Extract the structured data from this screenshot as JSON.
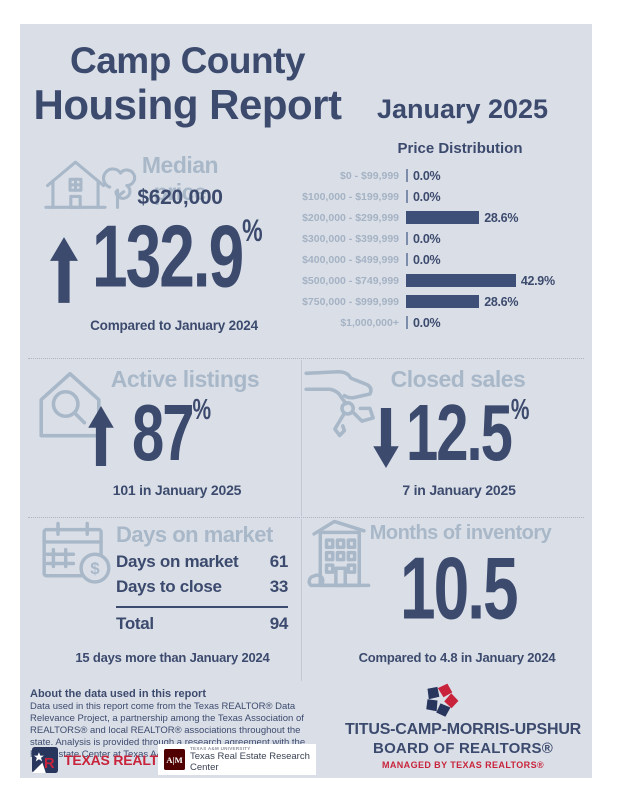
{
  "colors": {
    "navy": "#3c4a6e",
    "bar": "#3e4f78",
    "muted": "#a9b8c9",
    "card_bg": "#dadfe7",
    "red": "#c8233b",
    "maroon": "#500000"
  },
  "header": {
    "title_line1": "Camp County",
    "title_line2": "Housing Report",
    "date": "January 2025"
  },
  "chart_data": {
    "type": "bar",
    "orientation": "horizontal",
    "title": "Price Distribution",
    "categories": [
      "$0 - $99,999",
      "$100,000 - $199,999",
      "$200,000 - $299,999",
      "$300,000 - $399,999",
      "$400,000 - $499,999",
      "$500,000 - $749,999",
      "$750,000 - $999,999",
      "$1,000,000+"
    ],
    "values": [
      0.0,
      0.0,
      28.6,
      0.0,
      0.0,
      42.9,
      28.6,
      0.0
    ],
    "value_labels": [
      "0.0%",
      "0.0%",
      "28.6%",
      "0.0%",
      "0.0%",
      "42.9%",
      "28.6%",
      "0.0%"
    ],
    "xlim": [
      0,
      45
    ],
    "bar_color": "#3e4f78",
    "grid": false,
    "legend": "none"
  },
  "median_price": {
    "label": "Median price",
    "value": "$620,000",
    "direction": "up",
    "change": "132.9",
    "unit": "%",
    "note": "Compared to January 2024"
  },
  "active_listings": {
    "label": "Active listings",
    "direction": "up",
    "change": "87",
    "unit": "%",
    "note": "101 in January 2025"
  },
  "closed_sales": {
    "label": "Closed sales",
    "direction": "down",
    "change": "12.5",
    "unit": "%",
    "note": "7 in January 2025"
  },
  "days_on_market": {
    "label": "Days on market",
    "rows": [
      {
        "label": "Days on market",
        "value": "61"
      },
      {
        "label": "Days to close",
        "value": "33"
      }
    ],
    "total_label": "Total",
    "total_value": "94",
    "note": "15 days more than January 2024"
  },
  "months_of_inventory": {
    "label": "Months of inventory",
    "value": "10.5",
    "note": "Compared to 4.8 in January 2024"
  },
  "footer": {
    "about_title": "About the data used in this report",
    "about_body": "Data used in this report come from the Texas REALTOR® Data Relevance Project, a partnership among the Texas Association of REALTORS® and local REALTOR® associations throughout the state. Analysis is provided through a research agreement with the Real Estate Center at Texas A&M University.",
    "texas_realtors": "TEXAS REALTORS®",
    "tamu_small": "TEXAS A&M UNIVERSITY",
    "tamu_name": "Texas Real Estate Research Center",
    "board_line1": "TITUS-CAMP-MORRIS-UPSHUR",
    "board_line2": "BOARD OF REALTORS®",
    "managed": "MANAGED BY TEXAS REALTORS®"
  }
}
